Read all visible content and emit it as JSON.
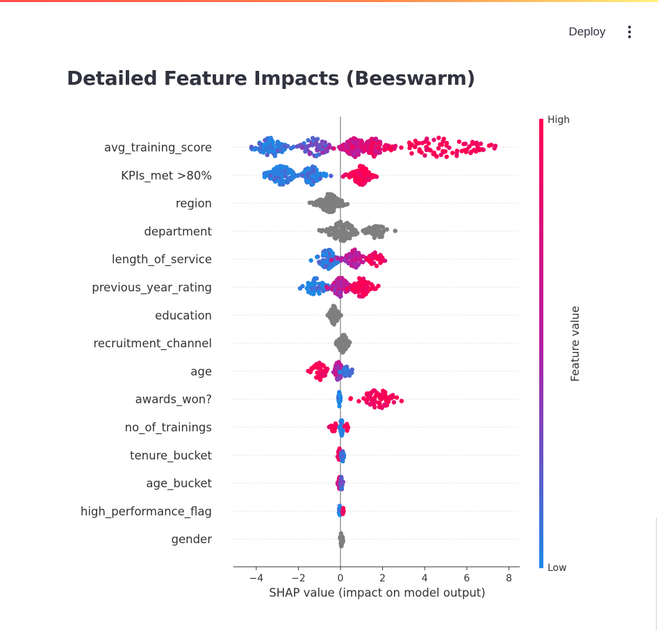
{
  "header": {
    "deploy_label": "Deploy",
    "menu_icon": "vertical-dots-icon"
  },
  "page": {
    "title": "Detailed Feature Impacts (Beeswarm)"
  },
  "colors": {
    "low": "#1e88e5",
    "high": "#ff0052",
    "mid": "#b41fa4",
    "neutral": "#7f7f7f"
  },
  "chart_data": {
    "type": "scatter",
    "variant": "beeswarm",
    "xlabel": "SHAP value (impact on model output)",
    "xticks": [
      -4,
      -2,
      0,
      2,
      4,
      6,
      8
    ],
    "xlim": [
      -5,
      8.5
    ],
    "colorbar": {
      "label": "Feature value",
      "high_label": "High",
      "low_label": "Low"
    },
    "features": [
      {
        "name": "avg_training_score",
        "colored": true,
        "range": [
          -4.5,
          8.0
        ],
        "clusters": [
          {
            "x": -3.3,
            "spread": 0.9,
            "n": 90,
            "value": 0.05
          },
          {
            "x": -1.2,
            "spread": 0.9,
            "n": 60,
            "value": 0.25
          },
          {
            "x": 0.7,
            "spread": 0.7,
            "n": 130,
            "value": 0.65
          },
          {
            "x": 1.6,
            "spread": 0.6,
            "n": 50,
            "value": 0.8
          },
          {
            "x": 4.8,
            "spread": 3.2,
            "n": 90,
            "value": 1.0
          }
        ]
      },
      {
        "name": "KPIs_met >80%",
        "colored": true,
        "range": [
          -3.6,
          2.1
        ],
        "clusters": [
          {
            "x": -2.8,
            "spread": 0.8,
            "n": 110,
            "value": 0.0
          },
          {
            "x": -1.4,
            "spread": 0.6,
            "n": 70,
            "value": 0.0
          },
          {
            "x": 1.0,
            "spread": 0.6,
            "n": 140,
            "value": 1.0
          }
        ]
      },
      {
        "name": "region",
        "colored": false,
        "range": [
          -1.8,
          0.6
        ],
        "clusters": [
          {
            "x": -0.5,
            "spread": 0.7,
            "n": 150
          }
        ]
      },
      {
        "name": "department",
        "colored": false,
        "range": [
          -1.0,
          2.6
        ],
        "clusters": [
          {
            "x": 0.1,
            "spread": 0.9,
            "n": 110
          },
          {
            "x": 1.7,
            "spread": 0.6,
            "n": 40
          }
        ]
      },
      {
        "name": "length_of_service",
        "colored": true,
        "range": [
          -1.4,
          2.4
        ],
        "clusters": [
          {
            "x": -0.6,
            "spread": 0.6,
            "n": 70,
            "value": 0.1
          },
          {
            "x": 0.7,
            "spread": 0.6,
            "n": 70,
            "value": 0.55
          },
          {
            "x": 1.7,
            "spread": 0.5,
            "n": 30,
            "value": 0.9
          }
        ]
      },
      {
        "name": "previous_year_rating",
        "colored": true,
        "range": [
          -2.0,
          1.8
        ],
        "clusters": [
          {
            "x": -1.2,
            "spread": 0.6,
            "n": 50,
            "value": 0.0
          },
          {
            "x": 0.0,
            "spread": 0.5,
            "n": 110,
            "value": 0.55
          },
          {
            "x": 1.0,
            "spread": 0.6,
            "n": 70,
            "value": 1.0
          }
        ]
      },
      {
        "name": "education",
        "colored": false,
        "range": [
          -0.6,
          0.4
        ],
        "clusters": [
          {
            "x": -0.3,
            "spread": 0.25,
            "n": 70
          }
        ]
      },
      {
        "name": "recruitment_channel",
        "colored": false,
        "range": [
          -0.2,
          0.7
        ],
        "clusters": [
          {
            "x": 0.1,
            "spread": 0.3,
            "n": 80
          }
        ]
      },
      {
        "name": "age",
        "colored": true,
        "range": [
          -1.6,
          0.7
        ],
        "clusters": [
          {
            "x": -1.0,
            "spread": 0.5,
            "n": 40,
            "value": 1.0
          },
          {
            "x": -0.1,
            "spread": 0.25,
            "n": 70,
            "value": 0.5
          },
          {
            "x": 0.3,
            "spread": 0.3,
            "n": 25,
            "value": 0.05
          }
        ]
      },
      {
        "name": "awards_won?",
        "colored": true,
        "range": [
          -0.1,
          2.9
        ],
        "clusters": [
          {
            "x": -0.05,
            "spread": 0.05,
            "n": 30,
            "value": 0.0
          },
          {
            "x": 1.8,
            "spread": 1.1,
            "n": 70,
            "value": 1.0
          }
        ]
      },
      {
        "name": "no_of_trainings",
        "colored": true,
        "range": [
          -0.6,
          0.4
        ],
        "clusters": [
          {
            "x": -0.3,
            "spread": 0.25,
            "n": 20,
            "value": 1.0
          },
          {
            "x": 0.05,
            "spread": 0.08,
            "n": 40,
            "value": 0.0
          },
          {
            "x": 0.3,
            "spread": 0.1,
            "n": 10,
            "value": 1.0
          }
        ]
      },
      {
        "name": "tenure_bucket",
        "colored": true,
        "range": [
          -0.2,
          0.2
        ],
        "clusters": [
          {
            "x": -0.05,
            "spread": 0.08,
            "n": 25,
            "value": 0.9
          },
          {
            "x": 0.1,
            "spread": 0.08,
            "n": 25,
            "value": 0.1
          }
        ]
      },
      {
        "name": "age_bucket",
        "colored": true,
        "range": [
          -0.2,
          0.2
        ],
        "clusters": [
          {
            "x": -0.05,
            "spread": 0.08,
            "n": 25,
            "value": 0.7
          },
          {
            "x": 0.05,
            "spread": 0.06,
            "n": 25,
            "value": 0.2
          }
        ]
      },
      {
        "name": "high_performance_flag",
        "colored": true,
        "range": [
          -0.1,
          0.2
        ],
        "clusters": [
          {
            "x": -0.03,
            "spread": 0.03,
            "n": 25,
            "value": 0.0
          },
          {
            "x": 0.12,
            "spread": 0.03,
            "n": 10,
            "value": 1.0
          }
        ]
      },
      {
        "name": "gender",
        "colored": false,
        "range": [
          -0.1,
          0.2
        ],
        "clusters": [
          {
            "x": 0.05,
            "spread": 0.08,
            "n": 30
          }
        ]
      }
    ]
  }
}
